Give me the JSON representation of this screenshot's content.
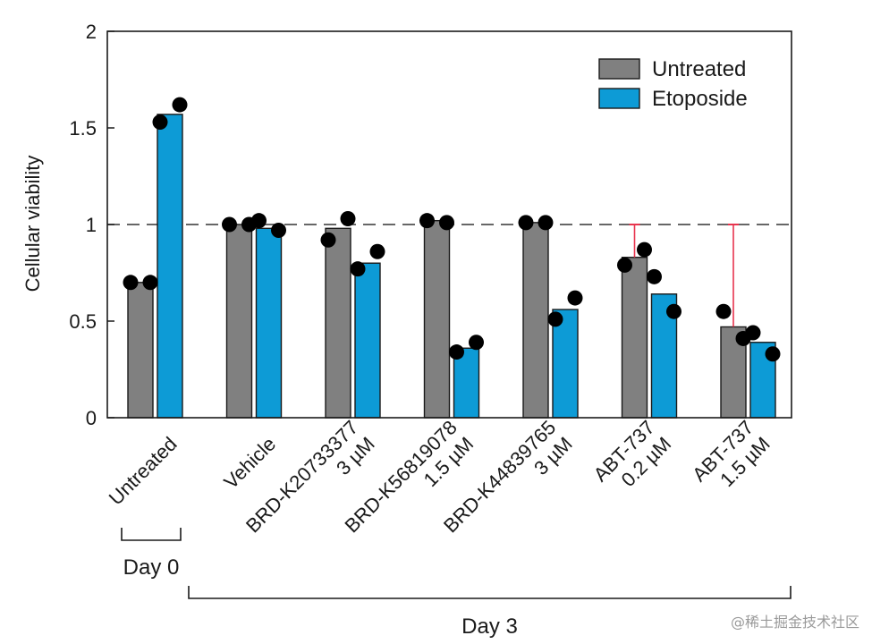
{
  "chart_data": {
    "type": "bar",
    "ylabel": "Cellular viability",
    "ylim": [
      0,
      2
    ],
    "yticks": [
      0,
      0.5,
      1,
      1.5,
      2
    ],
    "ytick_labels": [
      "0",
      "0.5",
      "1",
      "1.5",
      "2"
    ],
    "reference_line": 1,
    "legend_position": "top-right",
    "categories": [
      [
        "Untreated"
      ],
      [
        "Vehicle"
      ],
      [
        "BRD-K20733377",
        "3 µM"
      ],
      [
        "BRD-K56819078",
        "1.5 µM"
      ],
      [
        "BRD-K44839765",
        "3 µM"
      ],
      [
        "ABT-737",
        "0.2 µM"
      ],
      [
        "ABT-737",
        "1.5 µM"
      ]
    ],
    "series": [
      {
        "name": "Untreated",
        "color": "#808080",
        "values": [
          0.7,
          1.0,
          0.98,
          1.02,
          1.01,
          0.83,
          0.47
        ],
        "points": [
          [
            0.7,
            0.7
          ],
          [
            1.0,
            1.0
          ],
          [
            0.92,
            1.03
          ],
          [
            1.02,
            1.01
          ],
          [
            1.01,
            1.01
          ],
          [
            0.79,
            0.87
          ],
          [
            0.55,
            0.41
          ]
        ],
        "error_upper": [
          null,
          null,
          null,
          null,
          null,
          1.0,
          1.0
        ]
      },
      {
        "name": "Etoposide",
        "color": "#0d9bd6",
        "values": [
          1.57,
          0.98,
          0.8,
          0.36,
          0.56,
          0.64,
          0.39
        ],
        "points": [
          [
            1.53,
            1.62
          ],
          [
            1.02,
            0.97
          ],
          [
            0.77,
            0.86
          ],
          [
            0.34,
            0.39
          ],
          [
            0.51,
            0.62
          ],
          [
            0.73,
            0.55
          ],
          [
            0.44,
            0.33
          ]
        ],
        "error_upper": [
          null,
          null,
          null,
          null,
          null,
          null,
          null
        ]
      }
    ],
    "groups": [
      {
        "label": "Day 0",
        "categories": [
          0,
          0
        ]
      },
      {
        "label": "Day 3",
        "categories": [
          1,
          6
        ]
      }
    ],
    "error_bar_color": "#e8344e"
  },
  "watermark": "@稀土掘金技术社区"
}
